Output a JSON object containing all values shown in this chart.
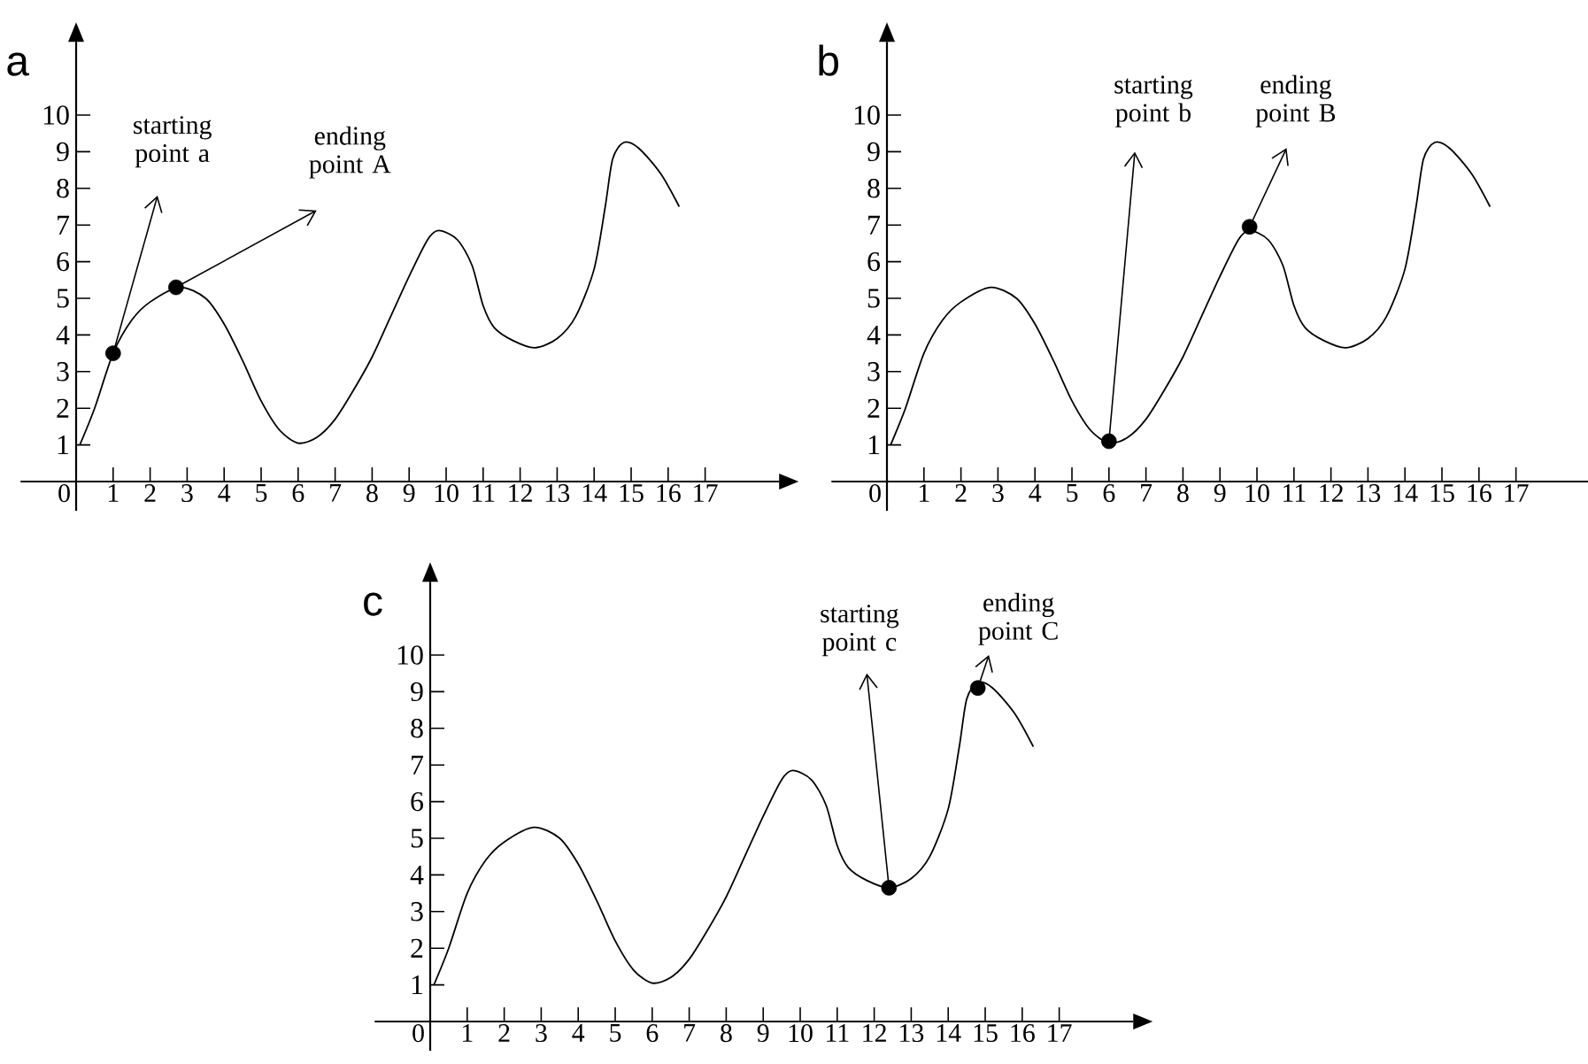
{
  "chart_data": [
    {
      "type": "line",
      "title": "a",
      "xlim": [
        -1.5,
        19
      ],
      "ylim": [
        -0.8,
        12
      ],
      "xticks": [
        0,
        1,
        2,
        3,
        4,
        5,
        6,
        7,
        8,
        9,
        10,
        11,
        12,
        13,
        14,
        15,
        16,
        17
      ],
      "yticks": [
        1,
        2,
        3,
        4,
        5,
        6,
        7,
        8,
        9,
        10
      ],
      "grid": false,
      "series": [
        {
          "type": "line",
          "color": "#000000",
          "x": [
            0.1,
            0.5,
            1,
            1.5,
            2,
            2.8,
            3.5,
            4,
            4.5,
            5,
            5.5,
            6,
            6.5,
            7,
            7.5,
            8,
            8.5,
            9,
            9.5,
            9.8,
            10.3,
            10.7,
            11,
            11.3,
            11.8,
            12.4,
            13,
            13.5,
            14,
            14.3,
            14.5,
            14.8,
            15.2,
            15.8,
            16.3
          ],
          "values": [
            1.0,
            2.0,
            3.5,
            4.4,
            4.9,
            5.3,
            5.0,
            4.3,
            3.3,
            2.2,
            1.4,
            1.05,
            1.2,
            1.7,
            2.5,
            3.4,
            4.5,
            5.6,
            6.6,
            6.85,
            6.6,
            5.9,
            4.8,
            4.2,
            3.85,
            3.65,
            3.9,
            4.5,
            5.8,
            7.5,
            8.8,
            9.25,
            9.1,
            8.4,
            7.5
          ]
        },
        {
          "type": "scatter",
          "color": "#000000",
          "marker": "circle",
          "x": [
            1,
            2.7
          ],
          "values": [
            3.5,
            5.3
          ]
        }
      ],
      "annotations": [
        {
          "text": "starting point a",
          "x": 1,
          "y": 3.5
        },
        {
          "text": "ending point A",
          "x": 2.7,
          "y": 5.3
        }
      ]
    },
    {
      "type": "line",
      "title": "b",
      "xlim": [
        -1.5,
        19
      ],
      "ylim": [
        -0.8,
        12
      ],
      "xticks": [
        0,
        1,
        2,
        3,
        4,
        5,
        6,
        7,
        8,
        9,
        10,
        11,
        12,
        13,
        14,
        15,
        16,
        17
      ],
      "yticks": [
        1,
        2,
        3,
        4,
        5,
        6,
        7,
        8,
        9,
        10
      ],
      "grid": false,
      "series": [
        {
          "type": "line",
          "color": "#000000",
          "x": [
            0.1,
            0.5,
            1,
            1.5,
            2,
            2.8,
            3.5,
            4,
            4.5,
            5,
            5.5,
            6,
            6.5,
            7,
            7.5,
            8,
            8.5,
            9,
            9.5,
            9.8,
            10.3,
            10.7,
            11,
            11.3,
            11.8,
            12.4,
            13,
            13.5,
            14,
            14.3,
            14.5,
            14.8,
            15.2,
            15.8,
            16.3
          ],
          "values": [
            1.0,
            2.0,
            3.5,
            4.4,
            4.9,
            5.3,
            5.0,
            4.3,
            3.3,
            2.2,
            1.4,
            1.05,
            1.2,
            1.7,
            2.5,
            3.4,
            4.5,
            5.6,
            6.6,
            6.85,
            6.6,
            5.9,
            4.8,
            4.2,
            3.85,
            3.65,
            3.9,
            4.5,
            5.8,
            7.5,
            8.8,
            9.25,
            9.1,
            8.4,
            7.5
          ]
        },
        {
          "type": "scatter",
          "color": "#000000",
          "marker": "circle",
          "x": [
            6,
            9.8
          ],
          "values": [
            1.1,
            6.95
          ]
        }
      ],
      "annotations": [
        {
          "text": "starting point b",
          "x": 6,
          "y": 1.1
        },
        {
          "text": "ending point B",
          "x": 9.8,
          "y": 6.95
        }
      ]
    },
    {
      "type": "line",
      "title": "c",
      "xlim": [
        -1.5,
        19
      ],
      "ylim": [
        -0.8,
        12
      ],
      "xticks": [
        0,
        1,
        2,
        3,
        4,
        5,
        6,
        7,
        8,
        9,
        10,
        11,
        12,
        13,
        14,
        15,
        16,
        17
      ],
      "yticks": [
        1,
        2,
        3,
        4,
        5,
        6,
        7,
        8,
        9,
        10
      ],
      "grid": false,
      "series": [
        {
          "type": "line",
          "color": "#000000",
          "x": [
            0.1,
            0.5,
            1,
            1.5,
            2,
            2.8,
            3.5,
            4,
            4.5,
            5,
            5.5,
            6,
            6.5,
            7,
            7.5,
            8,
            8.5,
            9,
            9.5,
            9.8,
            10.3,
            10.7,
            11,
            11.3,
            11.8,
            12.4,
            13,
            13.5,
            14,
            14.3,
            14.5,
            14.8,
            15.2,
            15.8,
            16.3
          ],
          "values": [
            1.0,
            2.0,
            3.5,
            4.4,
            4.9,
            5.3,
            5.0,
            4.3,
            3.3,
            2.2,
            1.4,
            1.05,
            1.2,
            1.7,
            2.5,
            3.4,
            4.5,
            5.6,
            6.6,
            6.85,
            6.6,
            5.9,
            4.8,
            4.2,
            3.85,
            3.65,
            3.9,
            4.5,
            5.8,
            7.5,
            8.8,
            9.25,
            9.1,
            8.4,
            7.5
          ]
        },
        {
          "type": "scatter",
          "color": "#000000",
          "marker": "circle",
          "x": [
            12.4,
            14.8
          ],
          "values": [
            3.65,
            9.1
          ]
        }
      ],
      "annotations": [
        {
          "text": "starting point c",
          "x": 12.4,
          "y": 3.65
        },
        {
          "text": "ending point C",
          "x": 14.8,
          "y": 9.1
        }
      ]
    }
  ]
}
